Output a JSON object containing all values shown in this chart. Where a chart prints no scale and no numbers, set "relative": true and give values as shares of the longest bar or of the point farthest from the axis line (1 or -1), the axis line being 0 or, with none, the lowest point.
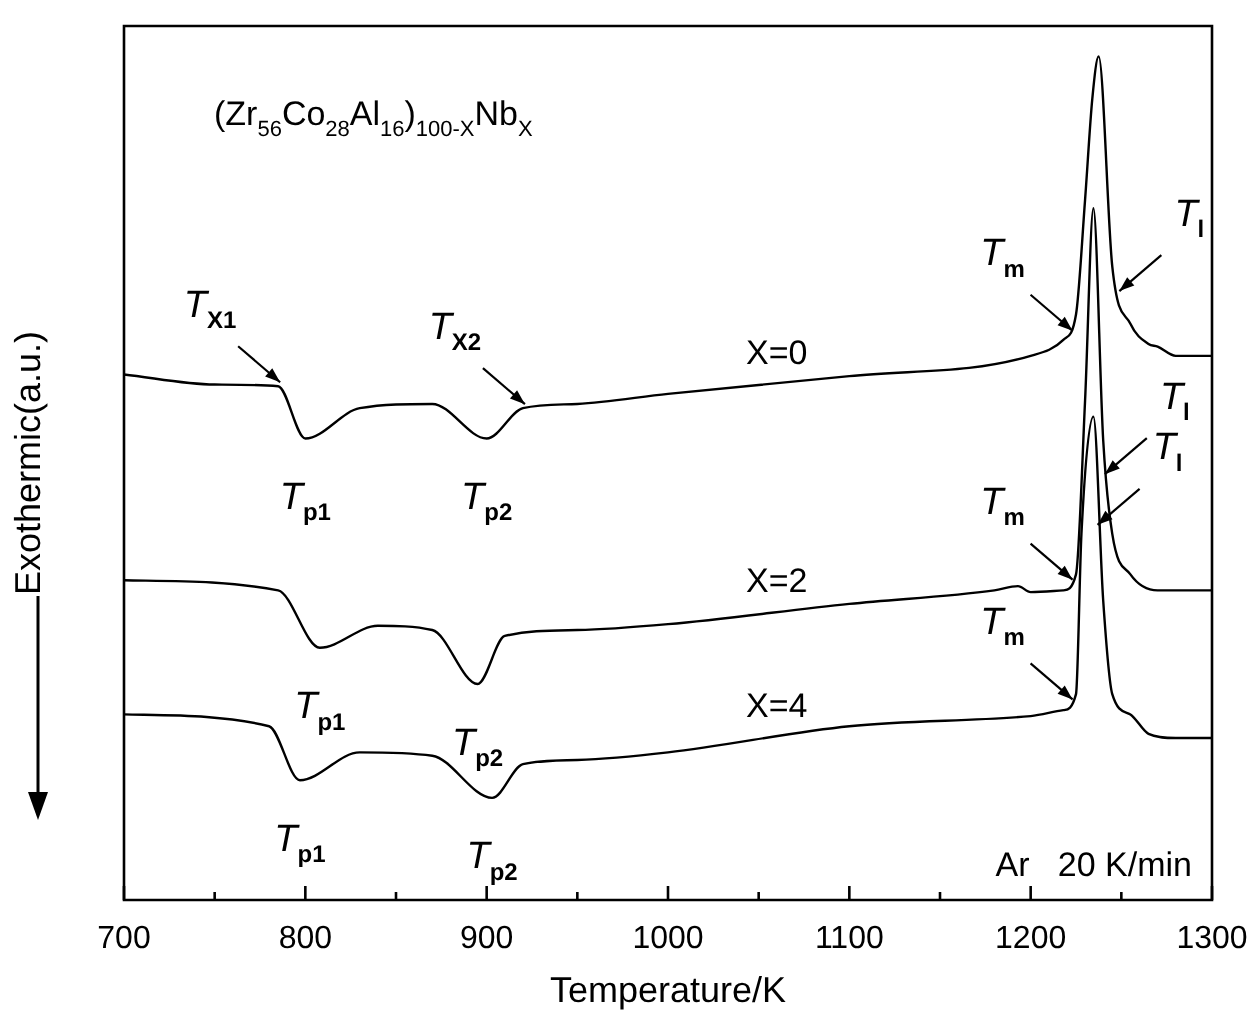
{
  "chart_data": {
    "type": "line",
    "title": "(Zr$_{56}$Co$_{28}$Al$_{16}$)$_{100-X}$Nb$_{X}$",
    "xlabel": "Temperature/K",
    "ylabel": "Exothermic(a.u.)",
    "relative": true,
    "legend": false,
    "grid": false,
    "marker": "none",
    "line_style": "solid",
    "xlim": [
      700,
      1300
    ],
    "xticks": [
      700,
      {
        "value": 750,
        "label": null
      },
      800,
      {
        "value": 850,
        "label": null
      },
      900,
      {
        "value": 950,
        "label": null
      },
      1000,
      {
        "value": 1050,
        "label": null
      },
      1100,
      {
        "value": 1150,
        "label": null
      },
      1200,
      {
        "value": 1250,
        "label": null
      },
      1300
    ],
    "series": [
      {
        "name": "X=0",
        "color": "#000000",
        "x": [
          700,
          750,
          785,
          800,
          830,
          870,
          900,
          920,
          950,
          1000,
          1100,
          1200,
          1218,
          1225,
          1230,
          1234,
          1237.5,
          1245,
          1255,
          1265,
          1270,
          1280,
          1300
        ],
        "values": [
          0.623,
          0.611,
          0.609,
          0.547,
          0.583,
          0.588,
          0.547,
          0.583,
          0.588,
          0.6,
          0.621,
          0.645,
          0.664,
          0.694,
          0.83,
          0.95,
          1,
          0.751,
          0.683,
          0.659,
          0.656,
          0.645,
          0.645
        ]
      },
      {
        "name": "X=2",
        "color": "#000000",
        "x": [
          700,
          785,
          808,
          840,
          870,
          895,
          910,
          950,
          1000,
          1100,
          1180,
          1193,
          1200,
          1218,
          1225,
          1230,
          1234.6,
          1240,
          1245,
          1255,
          1270,
          1300
        ],
        "values": [
          0.379,
          0.367,
          0.299,
          0.325,
          0.32,
          0.256,
          0.313,
          0.32,
          0.327,
          0.351,
          0.367,
          0.372,
          0.365,
          0.367,
          0.386,
          0.592,
          0.82,
          0.545,
          0.434,
          0.386,
          0.367,
          0.367
        ]
      },
      {
        "name": "X=4",
        "color": "#000000",
        "x": [
          700,
          780,
          797,
          830,
          870,
          903,
          920,
          950,
          1000,
          1100,
          1200,
          1218,
          1225,
          1228,
          1234.6,
          1240,
          1245,
          1255,
          1265,
          1280,
          1300
        ],
        "values": [
          0.22,
          0.206,
          0.142,
          0.175,
          0.171,
          0.121,
          0.161,
          0.166,
          0.175,
          0.206,
          0.218,
          0.225,
          0.244,
          0.434,
          0.573,
          0.355,
          0.244,
          0.22,
          0.197,
          0.192,
          0.192
        ]
      }
    ],
    "annotations": [
      {
        "text": "T$_{X1}$",
        "x": 785,
        "y": 0.609
      },
      {
        "text": "T$_{p1}$",
        "x": 800,
        "y": 0.547
      },
      {
        "text": "T$_{p2}$",
        "x": 900,
        "y": 0.547
      },
      {
        "text": "T$_{X2}$",
        "x": 920,
        "y": 0.583
      },
      {
        "text": "T$_{m}$",
        "x": 1222,
        "y": 0.67
      },
      {
        "text": "T$_{l}$",
        "x": 1250,
        "y": 0.717
      },
      {
        "text": "T$_{p1}$",
        "x": 808,
        "y": 0.299
      },
      {
        "text": "T$_{p2}$",
        "x": 895,
        "y": 0.256
      },
      {
        "text": "T$_{m}$",
        "x": 1222,
        "y": 0.375
      },
      {
        "text": "T$_{l}$",
        "x": 1242,
        "y": 0.5
      },
      {
        "text": "T$_{p1}$",
        "x": 797,
        "y": 0.142
      },
      {
        "text": "T$_{p2}$",
        "x": 903,
        "y": 0.121
      },
      {
        "text": "T$_{m}$",
        "x": 1222,
        "y": 0.233
      },
      {
        "text": "T$_{l}$",
        "x": 1238,
        "y": 0.44
      },
      "Ar   20 K/min"
    ]
  }
}
